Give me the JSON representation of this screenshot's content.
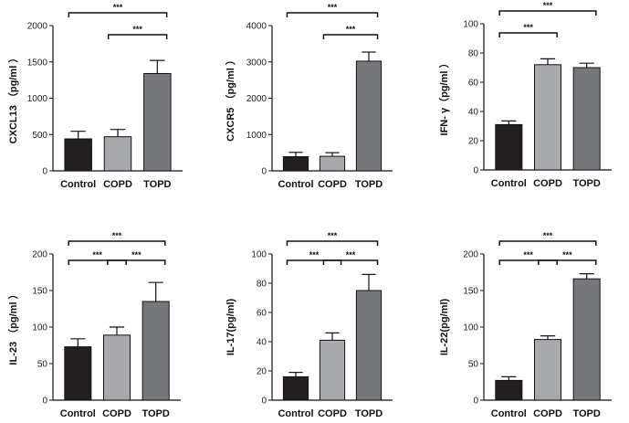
{
  "chart_data": [
    {
      "type": "bar",
      "ylabel": "CXCL13 （pg/ml ）",
      "categories": [
        "Control",
        "COPD",
        "TOPD"
      ],
      "values": [
        440,
        470,
        1340
      ],
      "errors": [
        105,
        100,
        180
      ],
      "ylim": [
        0,
        2000
      ],
      "yticks": [
        0,
        500,
        1000,
        1500,
        2000
      ],
      "bar_colors": [
        "#231f20",
        "#a7a9ac",
        "#77787b"
      ],
      "significance": [
        {
          "from": 0,
          "to": 2,
          "label": "***"
        },
        {
          "from": 1,
          "to": 2,
          "label": "***"
        }
      ]
    },
    {
      "type": "bar",
      "ylabel": "CXCR5 （pg/ml ）",
      "categories": [
        "Control",
        "COPD",
        "TOPD"
      ],
      "values": [
        390,
        400,
        3020
      ],
      "errors": [
        120,
        100,
        250
      ],
      "ylim": [
        0,
        4000
      ],
      "yticks": [
        0,
        1000,
        2000,
        3000,
        4000
      ],
      "bar_colors": [
        "#231f20",
        "#a7a9ac",
        "#77787b"
      ],
      "significance": [
        {
          "from": 0,
          "to": 2,
          "label": "***"
        },
        {
          "from": 1,
          "to": 2,
          "label": "***"
        }
      ]
    },
    {
      "type": "bar",
      "ylabel": "IFN- γ（pg/ml ）",
      "categories": [
        "Control",
        "COPD",
        "TOPD"
      ],
      "values": [
        31,
        72,
        70
      ],
      "errors": [
        2.5,
        4,
        3
      ],
      "ylim": [
        0,
        100
      ],
      "yticks": [
        0,
        20,
        40,
        60,
        80,
        100
      ],
      "bar_colors": [
        "#231f20",
        "#a7a9ac",
        "#77787b"
      ],
      "significance": [
        {
          "from": 0,
          "to": 2,
          "label": "***"
        },
        {
          "from": 0,
          "to": 1,
          "label": "***"
        }
      ]
    },
    {
      "type": "bar",
      "ylabel": "IL-23 （pg/ml ）",
      "categories": [
        "Control",
        "COPD",
        "TOPD"
      ],
      "values": [
        73,
        89,
        135
      ],
      "errors": [
        11,
        11,
        26
      ],
      "ylim": [
        0,
        200
      ],
      "yticks": [
        0,
        50,
        100,
        150,
        200
      ],
      "bar_colors": [
        "#231f20",
        "#a7a9ac",
        "#77787b"
      ],
      "significance": [
        {
          "from": 0,
          "to": 2,
          "label": "***"
        },
        {
          "from": 0,
          "to": 1,
          "label": "***"
        },
        {
          "from": 1,
          "to": 2,
          "label": "***"
        }
      ]
    },
    {
      "type": "bar",
      "ylabel": "IL-17(pg/ml)",
      "categories": [
        "Control",
        "COPD",
        "TOPD"
      ],
      "values": [
        16,
        41,
        75
      ],
      "errors": [
        3,
        5,
        11
      ],
      "ylim": [
        0,
        100
      ],
      "yticks": [
        0,
        20,
        40,
        60,
        80,
        100
      ],
      "bar_colors": [
        "#231f20",
        "#a7a9ac",
        "#77787b"
      ],
      "significance": [
        {
          "from": 0,
          "to": 2,
          "label": "***"
        },
        {
          "from": 0,
          "to": 1,
          "label": "***"
        },
        {
          "from": 1,
          "to": 2,
          "label": "***"
        }
      ]
    },
    {
      "type": "bar",
      "ylabel": "IL-22(pg/ml)",
      "categories": [
        "Control",
        "COPD",
        "TOPD"
      ],
      "values": [
        27,
        83,
        166
      ],
      "errors": [
        5,
        5,
        7
      ],
      "ylim": [
        0,
        200
      ],
      "yticks": [
        0,
        50,
        100,
        150,
        200
      ],
      "bar_colors": [
        "#231f20",
        "#a7a9ac",
        "#77787b"
      ],
      "significance": [
        {
          "from": 0,
          "to": 2,
          "label": "***"
        },
        {
          "from": 0,
          "to": 1,
          "label": "***"
        },
        {
          "from": 1,
          "to": 2,
          "label": "***"
        }
      ]
    }
  ]
}
